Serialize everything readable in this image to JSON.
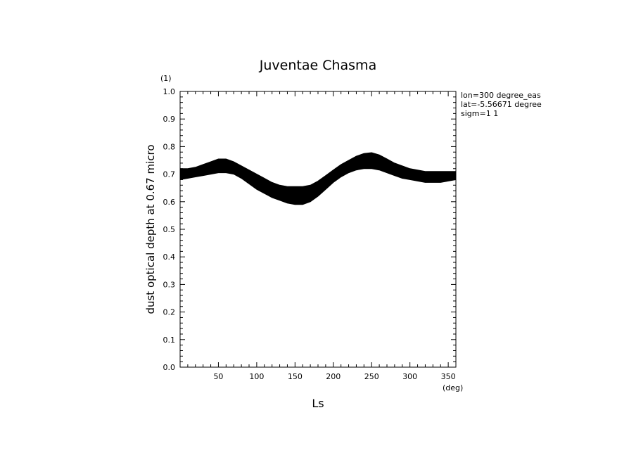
{
  "chart_data": {
    "type": "area",
    "title": "Juventae Chasma",
    "xlabel": "Ls",
    "ylabel": "dust optical depth at 0.67 micro",
    "x_unit": "(deg)",
    "y_unit": "(1)",
    "xlim": [
      0,
      360
    ],
    "ylim": [
      0.0,
      1.0
    ],
    "x_ticks": [
      50,
      100,
      150,
      200,
      250,
      300,
      350
    ],
    "x_tick_labels": [
      "50",
      "100",
      "150",
      "200",
      "250",
      "300",
      "350"
    ],
    "y_ticks": [
      0.0,
      0.1,
      0.2,
      0.3,
      0.4,
      0.5,
      0.6,
      0.7,
      0.8,
      0.9,
      1.0
    ],
    "y_tick_labels": [
      "0.0",
      "0.1",
      "0.2",
      "0.3",
      "0.4",
      "0.5",
      "0.6",
      "0.7",
      "0.8",
      "0.9",
      "1.0"
    ],
    "grid": false,
    "color": "#000000",
    "x": [
      0,
      10,
      20,
      30,
      40,
      50,
      60,
      70,
      80,
      90,
      100,
      110,
      120,
      130,
      140,
      150,
      160,
      170,
      180,
      190,
      200,
      210,
      220,
      230,
      240,
      250,
      260,
      270,
      280,
      290,
      300,
      310,
      320,
      330,
      340,
      350,
      360
    ],
    "upper": [
      0.72,
      0.72,
      0.725,
      0.735,
      0.745,
      0.755,
      0.755,
      0.745,
      0.73,
      0.715,
      0.7,
      0.685,
      0.67,
      0.66,
      0.655,
      0.655,
      0.655,
      0.66,
      0.675,
      0.695,
      0.715,
      0.735,
      0.75,
      0.765,
      0.775,
      0.778,
      0.77,
      0.755,
      0.74,
      0.73,
      0.72,
      0.715,
      0.71,
      0.71,
      0.71,
      0.71,
      0.71
    ],
    "lower": [
      0.68,
      0.685,
      0.69,
      0.695,
      0.7,
      0.705,
      0.705,
      0.7,
      0.685,
      0.665,
      0.645,
      0.63,
      0.615,
      0.605,
      0.595,
      0.59,
      0.59,
      0.6,
      0.62,
      0.645,
      0.67,
      0.69,
      0.705,
      0.715,
      0.72,
      0.72,
      0.715,
      0.705,
      0.695,
      0.685,
      0.68,
      0.675,
      0.67,
      0.67,
      0.67,
      0.675,
      0.68
    ]
  },
  "info": {
    "lon": "lon=300 degree_eas",
    "lat": "lat=-5.56671 degree",
    "sigm": "sigm=1 1"
  }
}
